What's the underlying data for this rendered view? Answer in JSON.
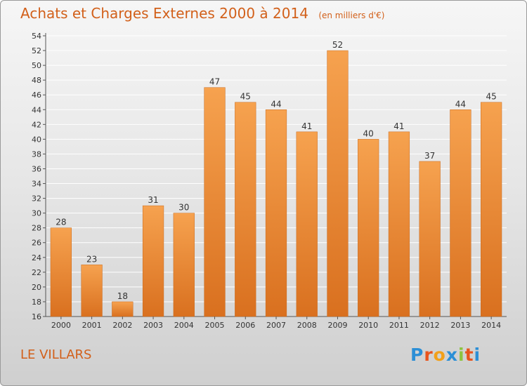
{
  "title": "Achats et Charges Externes 2000 à 2014",
  "subtitle": "(en milliers d'€)",
  "place": "LE VILLARS",
  "logo": {
    "text": "Proxiti",
    "letters": [
      "P",
      "r",
      "o",
      "x",
      "i",
      "t",
      "i"
    ],
    "colors": [
      "#2c8fd6",
      "#e8541d",
      "#f2a019",
      "#2c8fd6",
      "#8dc43f",
      "#e8541d",
      "#2c8fd6"
    ]
  },
  "colors": {
    "bar_light": "#f6a24f",
    "bar_dark": "#d9701f",
    "title": "#d2601a",
    "grid": "#ffffff"
  },
  "chart_data": {
    "type": "bar",
    "title": "Achats et Charges Externes 2000 à 2014",
    "subtitle": "(en milliers d'€)",
    "categories": [
      "2000",
      "2001",
      "2002",
      "2003",
      "2004",
      "2005",
      "2006",
      "2007",
      "2008",
      "2009",
      "2010",
      "2011",
      "2012",
      "2013",
      "2014"
    ],
    "values": [
      28,
      23,
      18,
      31,
      30,
      47,
      45,
      44,
      41,
      52,
      40,
      41,
      37,
      44,
      45
    ],
    "ylim": [
      16,
      54
    ],
    "yticks": [
      16,
      18,
      20,
      22,
      24,
      26,
      28,
      30,
      32,
      34,
      36,
      38,
      40,
      42,
      44,
      46,
      48,
      50,
      52,
      54
    ],
    "grid": true,
    "data_labels": true
  }
}
